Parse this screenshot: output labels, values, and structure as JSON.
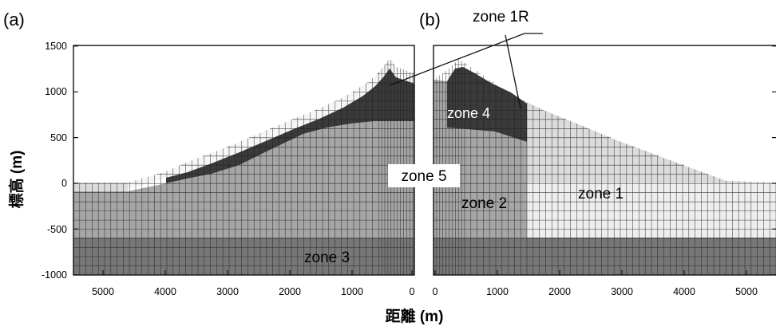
{
  "panels": {
    "a": {
      "label": "(a)"
    },
    "b": {
      "label": "(b)"
    }
  },
  "axes": {
    "ylabel": "標高 (m)",
    "xlabel": "距離 (m)",
    "y_ticks": [
      "1500",
      "1000",
      "500",
      "0",
      "-500",
      "-1000"
    ],
    "x_ticks_a": [
      "5000",
      "4000",
      "3000",
      "2000",
      "1000",
      "0"
    ],
    "x_ticks_b": [
      "0",
      "1000",
      "2000",
      "3000",
      "4000",
      "5000"
    ]
  },
  "zones": {
    "zone1": "zone 1",
    "zone1R": "zone 1R",
    "zone2": "zone 2",
    "zone3": "zone 3",
    "zone4": "zone 4",
    "zone5": "zone 5"
  },
  "colors": {
    "zone1": "#dcdcdc",
    "zone1R": "#f6f6f6",
    "zone2": "#a6a6a6",
    "zone3": "#777777",
    "zone4": "#3a3a3a",
    "zone5": "#ffffff",
    "grid": "#202020"
  }
}
